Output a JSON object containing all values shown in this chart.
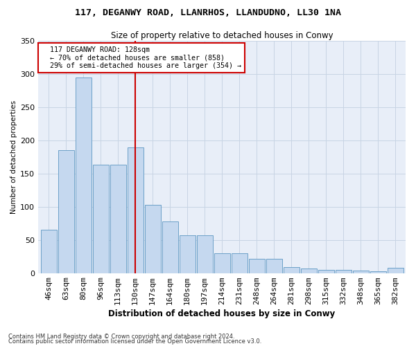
{
  "title": "117, DEGANWY ROAD, LLANRHOS, LLANDUDNO, LL30 1NA",
  "subtitle": "Size of property relative to detached houses in Conwy",
  "xlabel": "Distribution of detached houses by size in Conwy",
  "ylabel": "Number of detached properties",
  "footnote1": "Contains HM Land Registry data © Crown copyright and database right 2024.",
  "footnote2": "Contains public sector information licensed under the Open Government Licence v3.0.",
  "bar_labels": [
    "46sqm",
    "63sqm",
    "80sqm",
    "96sqm",
    "113sqm",
    "130sqm",
    "147sqm",
    "164sqm",
    "180sqm",
    "197sqm",
    "214sqm",
    "231sqm",
    "248sqm",
    "264sqm",
    "281sqm",
    "298sqm",
    "315sqm",
    "332sqm",
    "348sqm",
    "365sqm",
    "382sqm"
  ],
  "bar_values": [
    65,
    185,
    295,
    163,
    163,
    190,
    103,
    78,
    57,
    57,
    30,
    30,
    22,
    22,
    9,
    7,
    5,
    5,
    4,
    3,
    8
  ],
  "bar_color": "#c5d8ef",
  "bar_edge_color": "#6ca0c8",
  "grid_color": "#c8d4e4",
  "background_color": "#e8eef8",
  "red_line_x": 5.0,
  "annotation_text": "  117 DEGANWY ROAD: 128sqm\n  ← 70% of detached houses are smaller (858)\n  29% of semi-detached houses are larger (354) →",
  "annotation_box_color": "#ffffff",
  "annotation_box_edge": "#cc0000",
  "red_line_color": "#cc0000",
  "ylim": [
    0,
    350
  ],
  "yticks": [
    0,
    50,
    100,
    150,
    200,
    250,
    300,
    350
  ]
}
